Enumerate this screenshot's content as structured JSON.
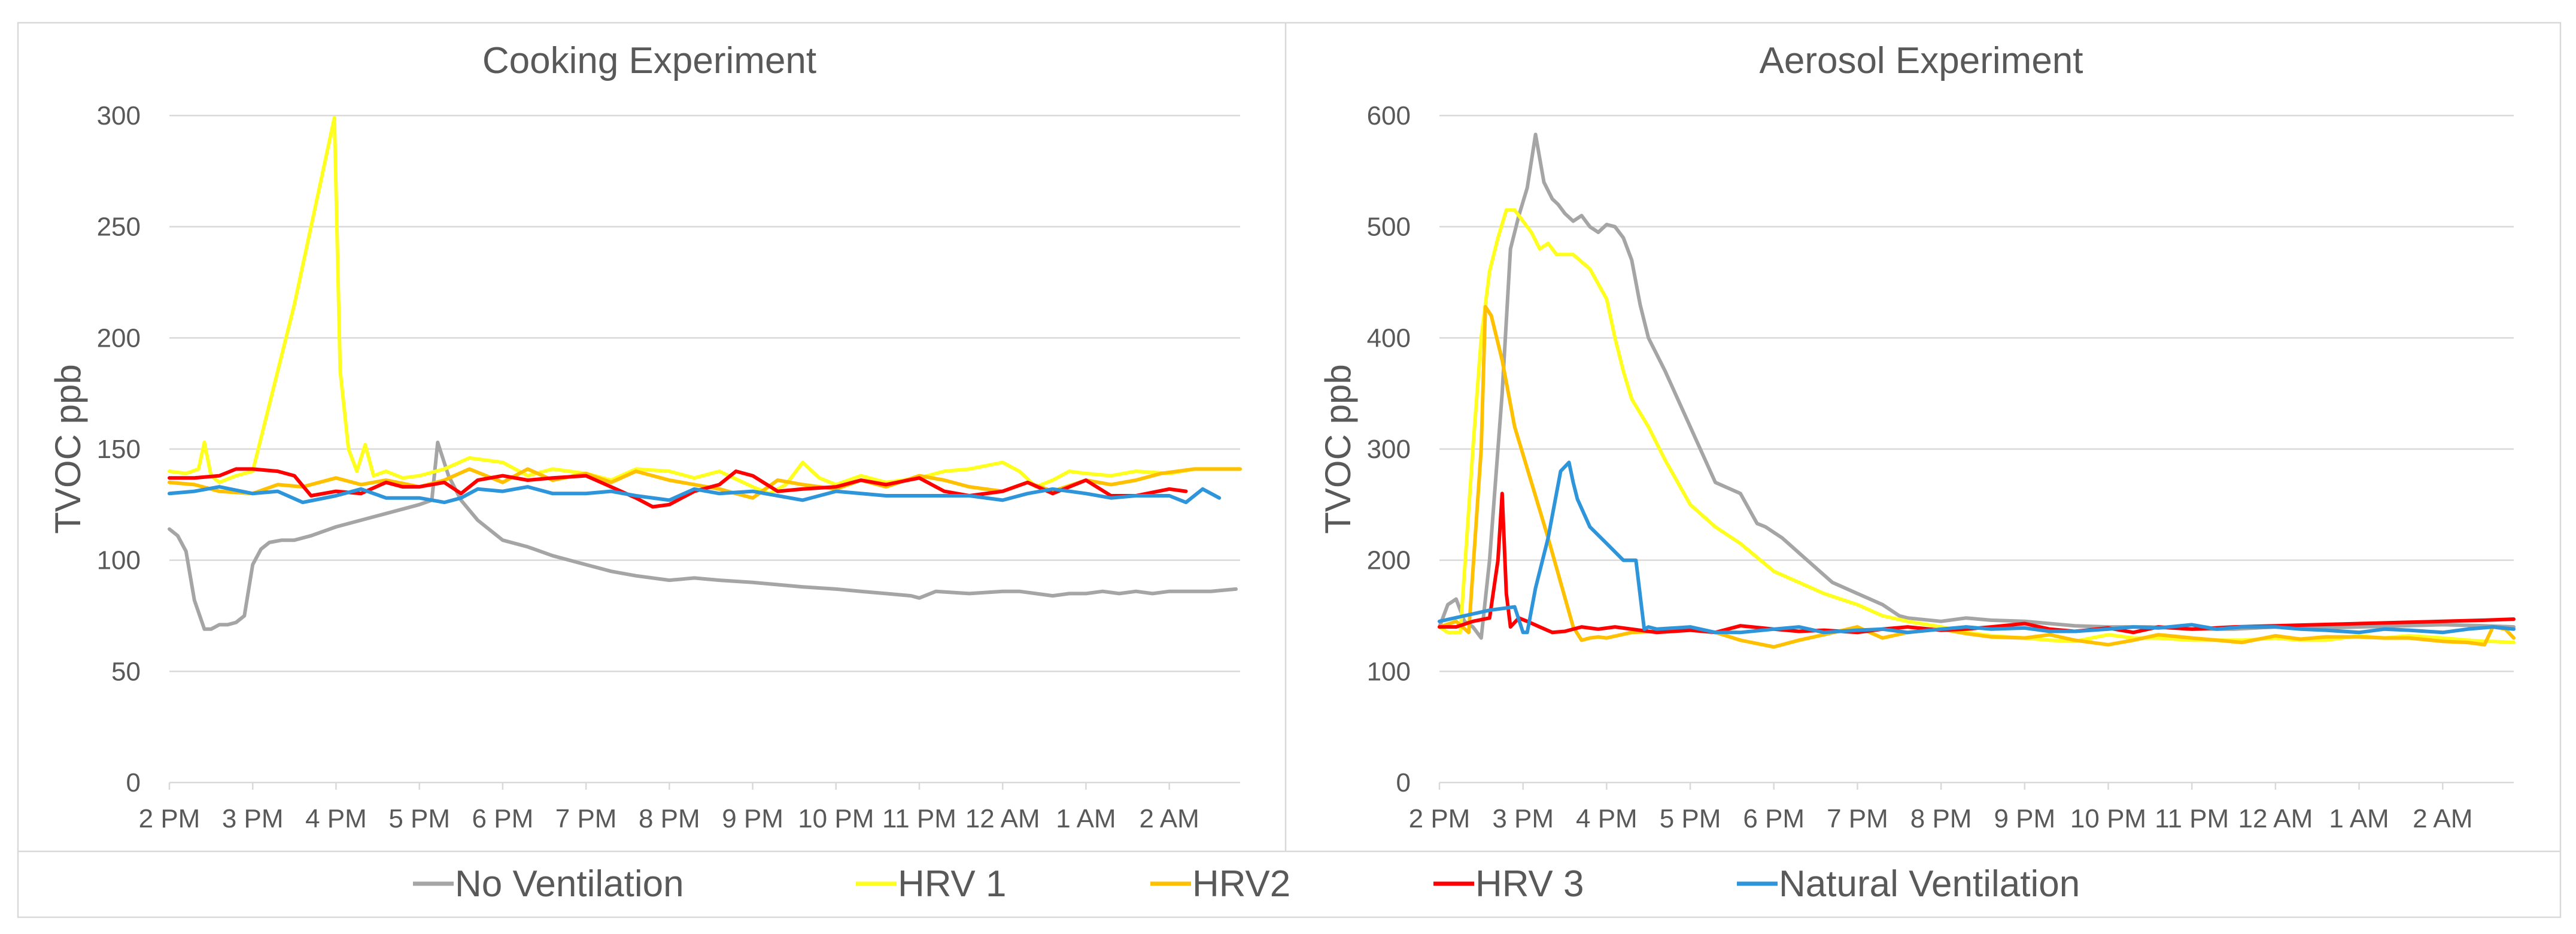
{
  "colors": {
    "No Ventilation": "#A5A5A5",
    "HRV 1": "#FFFF1F",
    "HRV2": "#FFC000",
    "HRV 3": "#FF0000",
    "Natural Ventilation": "#2E95DA"
  },
  "legend": [
    "No Ventilation",
    "HRV 1",
    "HRV2",
    "HRV 3",
    "Natural Ventilation"
  ],
  "chart_data": [
    {
      "type": "line",
      "title": "Cooking Experiment",
      "xlabel": "",
      "ylabel": "TVOC ppb",
      "ylim": [
        0,
        300
      ],
      "yticks": [
        0,
        50,
        100,
        150,
        200,
        250,
        300
      ],
      "xlim": [
        14,
        26.85
      ],
      "xticks": [
        14,
        15,
        16,
        17,
        18,
        19,
        20,
        21,
        22,
        23,
        24,
        25,
        26
      ],
      "xtick_labels": [
        "2 PM",
        "3 PM",
        "4 PM",
        "5 PM",
        "6 PM",
        "7 PM",
        "8 PM",
        "9 PM",
        "10 PM",
        "11 PM",
        "12 AM",
        "1 AM",
        "2 AM"
      ],
      "grid": true,
      "series": [
        {
          "name": "No Ventilation",
          "x": [
            14,
            14.1,
            14.2,
            14.3,
            14.42,
            14.5,
            14.6,
            14.7,
            14.8,
            14.9,
            15,
            15.1,
            15.2,
            15.35,
            15.5,
            15.7,
            16,
            16.5,
            17,
            17.15,
            17.22,
            17.35,
            17.5,
            17.7,
            18,
            18.3,
            18.6,
            19,
            19.3,
            19.6,
            20,
            20.3,
            20.6,
            21,
            21.3,
            21.6,
            22,
            22.3,
            22.6,
            22.9,
            23,
            23.2,
            23.6,
            24,
            24.2,
            24.4,
            24.6,
            24.8,
            25,
            25.2,
            25.4,
            25.6,
            25.8,
            26,
            26.3,
            26.5,
            26.8
          ],
          "y": [
            114,
            111,
            104,
            82,
            69,
            69,
            71,
            71,
            72,
            75,
            98,
            105,
            108,
            109,
            109,
            111,
            115,
            120,
            125,
            127,
            153,
            138,
            127,
            118,
            109,
            106,
            102,
            98,
            95,
            93,
            91,
            92,
            91,
            90,
            89,
            88,
            87,
            86,
            85,
            84,
            83,
            86,
            85,
            86,
            86,
            85,
            84,
            85,
            85,
            86,
            85,
            86,
            85,
            86,
            86,
            86,
            87
          ]
        },
        {
          "name": "HRV 1",
          "x": [
            14,
            14.2,
            14.35,
            14.42,
            14.5,
            14.6,
            14.8,
            15,
            15.5,
            15.98,
            16.05,
            16.15,
            16.25,
            16.35,
            16.45,
            16.6,
            16.8,
            17,
            17.3,
            17.6,
            18,
            18.3,
            18.6,
            19,
            19.3,
            19.6,
            20,
            20.3,
            20.6,
            21,
            21.2,
            21.4,
            21.6,
            21.8,
            22,
            22.3,
            22.6,
            23,
            23.3,
            23.6,
            24,
            24.2,
            24.4,
            24.6,
            24.8,
            25,
            25.3,
            25.6,
            26,
            26.3,
            26.6,
            26.85
          ],
          "y": [
            140,
            139,
            141,
            153,
            138,
            135,
            138,
            140,
            215,
            299,
            185,
            150,
            140,
            152,
            138,
            140,
            137,
            138,
            141,
            146,
            144,
            138,
            141,
            139,
            136,
            141,
            140,
            137,
            140,
            133,
            130,
            134,
            144,
            137,
            134,
            138,
            135,
            137,
            140,
            141,
            144,
            140,
            133,
            136,
            140,
            139,
            138,
            140,
            139,
            141,
            141,
            141
          ]
        },
        {
          "name": "HRV2",
          "x": [
            14,
            14.3,
            14.6,
            15,
            15.3,
            15.6,
            16,
            16.3,
            16.6,
            17,
            17.3,
            17.6,
            18,
            18.3,
            18.6,
            19,
            19.3,
            19.6,
            20,
            20.3,
            20.6,
            21,
            21.3,
            21.6,
            22,
            22.3,
            22.6,
            23,
            23.3,
            23.6,
            24,
            24.3,
            24.6,
            25,
            25.3,
            25.6,
            25.9,
            26.3,
            26.6,
            26.85
          ],
          "y": [
            135,
            134,
            131,
            130,
            134,
            133,
            137,
            134,
            136,
            133,
            136,
            141,
            135,
            141,
            136,
            139,
            135,
            140,
            136,
            134,
            132,
            128,
            136,
            134,
            132,
            136,
            133,
            138,
            136,
            133,
            131,
            135,
            131,
            136,
            134,
            136,
            139,
            141,
            141,
            141
          ]
        },
        {
          "name": "HRV 3",
          "x": [
            14,
            14.3,
            14.6,
            14.8,
            15,
            15.3,
            15.5,
            15.7,
            16,
            16.3,
            16.6,
            16.8,
            17,
            17.3,
            17.5,
            17.7,
            18,
            18.3,
            18.6,
            19,
            19.3,
            19.6,
            19.8,
            20,
            20.3,
            20.6,
            20.8,
            21,
            21.3,
            21.6,
            22,
            22.3,
            22.6,
            23,
            23.3,
            23.6,
            24,
            24.3,
            24.6,
            25,
            25.3,
            25.6,
            26,
            26.2
          ],
          "y": [
            137,
            137,
            138,
            141,
            141,
            140,
            138,
            129,
            131,
            130,
            135,
            133,
            133,
            135,
            130,
            136,
            138,
            136,
            137,
            138,
            133,
            128,
            124,
            125,
            131,
            134,
            140,
            138,
            131,
            132,
            133,
            136,
            134,
            137,
            131,
            129,
            131,
            135,
            130,
            136,
            129,
            129,
            132,
            131
          ]
        },
        {
          "name": "Natural Ventilation",
          "x": [
            14,
            14.3,
            14.6,
            15,
            15.3,
            15.6,
            16,
            16.3,
            16.6,
            17,
            17.3,
            17.5,
            17.7,
            18,
            18.3,
            18.6,
            19,
            19.3,
            19.6,
            20,
            20.3,
            20.6,
            21,
            21.3,
            21.6,
            22,
            22.3,
            22.6,
            23,
            23.3,
            23.6,
            24,
            24.3,
            24.6,
            25,
            25.3,
            25.6,
            26,
            26.2,
            26.4,
            26.6
          ],
          "y": [
            130,
            131,
            133,
            130,
            131,
            126,
            129,
            132,
            128,
            128,
            126,
            128,
            132,
            131,
            133,
            130,
            130,
            131,
            129,
            127,
            132,
            130,
            131,
            129,
            127,
            131,
            130,
            129,
            129,
            129,
            129,
            127,
            130,
            132,
            130,
            128,
            129,
            129,
            126,
            132,
            128
          ]
        }
      ]
    },
    {
      "type": "line",
      "title": "Aerosol Experiment",
      "xlabel": "",
      "ylabel": "TVOC ppb",
      "ylim": [
        0,
        600
      ],
      "yticks": [
        0,
        100,
        200,
        300,
        400,
        500,
        600
      ],
      "xlim": [
        14,
        26.85
      ],
      "xticks": [
        14,
        15,
        16,
        17,
        18,
        19,
        20,
        21,
        22,
        23,
        24,
        25,
        26
      ],
      "xtick_labels": [
        "2 PM",
        "3 PM",
        "4 PM",
        "5 PM",
        "6 PM",
        "7 PM",
        "8 PM",
        "9 PM",
        "10 PM",
        "11 PM",
        "12 AM",
        "1 AM",
        "2 AM"
      ],
      "grid": true,
      "series": [
        {
          "name": "No Ventilation",
          "x": [
            14,
            14.1,
            14.2,
            14.3,
            14.4,
            14.5,
            14.6,
            14.75,
            14.85,
            14.95,
            15.05,
            15.15,
            15.25,
            15.35,
            15.42,
            15.5,
            15.6,
            15.7,
            15.8,
            15.9,
            16,
            16.1,
            16.2,
            16.3,
            16.4,
            16.5,
            16.7,
            17,
            17.3,
            17.6,
            17.8,
            17.9,
            18.1,
            18.4,
            18.7,
            19,
            19.3,
            19.5,
            19.6,
            20,
            20.3,
            20.6,
            21,
            21.3,
            21.6,
            22,
            22.5,
            23,
            23.5,
            24,
            24.5,
            25,
            25.5,
            26,
            26.5,
            26.85
          ],
          "y": [
            140,
            160,
            165,
            145,
            140,
            130,
            200,
            350,
            480,
            510,
            535,
            583,
            540,
            525,
            520,
            512,
            505,
            510,
            500,
            495,
            502,
            500,
            490,
            470,
            430,
            400,
            370,
            320,
            270,
            260,
            233,
            230,
            220,
            200,
            180,
            170,
            160,
            150,
            148,
            145,
            148,
            146,
            145,
            143,
            141,
            140,
            140,
            138,
            138,
            140,
            139,
            140,
            141,
            142,
            141,
            140
          ]
        },
        {
          "name": "HRV 1",
          "x": [
            14,
            14.1,
            14.25,
            14.4,
            14.5,
            14.6,
            14.7,
            14.8,
            14.9,
            15,
            15.1,
            15.2,
            15.3,
            15.4,
            15.6,
            15.8,
            16,
            16.1,
            16.2,
            16.3,
            16.5,
            16.7,
            17,
            17.3,
            17.6,
            18,
            18.3,
            18.6,
            19,
            19.3,
            19.6,
            20,
            20.3,
            20.6,
            21,
            21.3,
            21.6,
            22,
            22.3,
            22.6,
            23,
            23.3,
            23.6,
            24,
            24.3,
            24.6,
            25,
            25.3,
            25.6,
            26,
            26.3,
            26.5,
            26.6,
            26.85
          ],
          "y": [
            140,
            135,
            135,
            300,
            400,
            460,
            490,
            515,
            515,
            505,
            495,
            480,
            485,
            475,
            475,
            462,
            435,
            400,
            370,
            345,
            320,
            290,
            250,
            230,
            215,
            190,
            180,
            170,
            160,
            150,
            145,
            140,
            135,
            132,
            130,
            128,
            127,
            133,
            130,
            130,
            128,
            128,
            128,
            130,
            128,
            128,
            132,
            130,
            132,
            130,
            128,
            127,
            127,
            126
          ]
        },
        {
          "name": "HRV2",
          "x": [
            14,
            14.2,
            14.35,
            14.5,
            14.55,
            14.62,
            14.75,
            14.9,
            15.1,
            15.3,
            15.45,
            15.6,
            15.7,
            15.8,
            15.9,
            16,
            16.3,
            16.6,
            17,
            17.3,
            17.6,
            18,
            18.3,
            18.6,
            19,
            19.3,
            19.6,
            20,
            20.3,
            20.6,
            21,
            21.3,
            21.6,
            22,
            22.3,
            22.6,
            23,
            23.3,
            23.6,
            24,
            24.3,
            24.6,
            25,
            25.3,
            25.6,
            26,
            26.3,
            26.5,
            26.6,
            26.75,
            26.85
          ],
          "y": [
            140,
            145,
            135,
            300,
            428,
            420,
            380,
            320,
            270,
            220,
            180,
            140,
            128,
            130,
            131,
            130,
            135,
            136,
            138,
            135,
            128,
            122,
            128,
            133,
            140,
            130,
            135,
            138,
            134,
            131,
            130,
            133,
            128,
            124,
            128,
            133,
            130,
            128,
            126,
            132,
            129,
            131,
            131,
            130,
            130,
            127,
            126,
            124,
            140,
            138,
            130
          ]
        },
        {
          "name": "HRV 3",
          "x": [
            14,
            14.2,
            14.4,
            14.6,
            14.7,
            14.75,
            14.8,
            14.85,
            14.95,
            15.05,
            15.2,
            15.35,
            15.5,
            15.7,
            15.9,
            16.1,
            16.3,
            16.6,
            17,
            17.3,
            17.6,
            18,
            18.3,
            18.6,
            19,
            19.3,
            19.6,
            20,
            20.3,
            20.6,
            21,
            21.3,
            21.6,
            22,
            22.3,
            22.6,
            23,
            23.5,
            24,
            24.5,
            25,
            25.5,
            26,
            26.5,
            26.85
          ],
          "y": [
            140,
            140,
            145,
            148,
            200,
            260,
            170,
            140,
            148,
            145,
            140,
            135,
            136,
            140,
            138,
            140,
            138,
            135,
            137,
            135,
            141,
            138,
            136,
            137,
            135,
            138,
            140,
            137,
            138,
            140,
            143,
            138,
            136,
            139,
            135,
            140,
            138,
            140,
            141,
            142,
            143,
            144,
            145,
            146,
            147
          ]
        },
        {
          "name": "Natural Ventilation",
          "x": [
            14,
            14.3,
            14.6,
            14.9,
            15,
            15.05,
            15.15,
            15.3,
            15.45,
            15.55,
            15.6,
            15.65,
            15.8,
            16,
            16.2,
            16.35,
            16.45,
            16.5,
            16.6,
            17,
            17.3,
            17.6,
            18,
            18.3,
            18.6,
            19,
            19.3,
            19.6,
            20,
            20.3,
            20.6,
            21,
            21.3,
            21.6,
            22,
            22.3,
            22.6,
            23,
            23.3,
            23.6,
            24,
            24.3,
            24.6,
            25,
            25.3,
            25.6,
            26,
            26.3,
            26.6,
            26.85
          ],
          "y": [
            145,
            150,
            155,
            158,
            135,
            135,
            175,
            220,
            280,
            288,
            270,
            255,
            230,
            215,
            200,
            200,
            138,
            140,
            138,
            140,
            135,
            135,
            138,
            140,
            135,
            137,
            138,
            135,
            138,
            140,
            138,
            139,
            136,
            136,
            138,
            140,
            139,
            142,
            138,
            140,
            140,
            138,
            137,
            135,
            138,
            137,
            135,
            138,
            140,
            138
          ]
        }
      ]
    }
  ]
}
